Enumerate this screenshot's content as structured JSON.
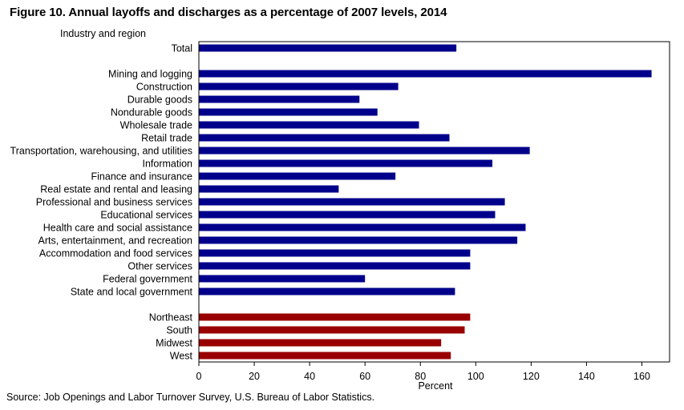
{
  "figure": {
    "title": "Figure 10. Annual layoffs and discharges as a percentage of 2007 levels, 2014",
    "source": "Source: Job Openings and Labor Turnover Survey, U.S. Bureau of Labor Statistics."
  },
  "colors": {
    "industry_bar": "#00008B",
    "region_bar": "#990000",
    "axis": "#000000"
  },
  "chart_data": {
    "type": "bar",
    "orientation": "horizontal",
    "title": "Figure 10. Annual layoffs and discharges as a percentage of 2007 levels, 2014",
    "ylabel": "Industry and region",
    "xlabel": "Percent",
    "xlim": [
      0,
      170
    ],
    "xticks": [
      0,
      20,
      40,
      60,
      80,
      100,
      120,
      140,
      160
    ],
    "grid": false,
    "legend": "none",
    "groups": [
      {
        "color": "#00008B",
        "categories": [
          "Total"
        ],
        "values": [
          93
        ]
      },
      {
        "color": "#00008B",
        "categories": [
          "Mining and logging",
          "Construction",
          "Durable goods",
          "Nondurable goods",
          "Wholesale trade",
          "Retail trade",
          "Transportation, warehousing, and utilities",
          "Information",
          "Finance and insurance",
          "Real estate and rental and leasing",
          "Professional and business services",
          "Educational services",
          "Health care and social assistance",
          "Arts, entertainment, and recreation",
          "Accommodation and food services",
          "Other services",
          "Federal government",
          "State and local government"
        ],
        "values": [
          163.5,
          72,
          58,
          64.5,
          79.5,
          90.5,
          119.5,
          106,
          71,
          50.5,
          110.5,
          107,
          118,
          115,
          98,
          98,
          60,
          92.5
        ]
      },
      {
        "color": "#990000",
        "categories": [
          "Northeast",
          "South",
          "Midwest",
          "West"
        ],
        "values": [
          98,
          96,
          87.5,
          91
        ]
      }
    ]
  }
}
